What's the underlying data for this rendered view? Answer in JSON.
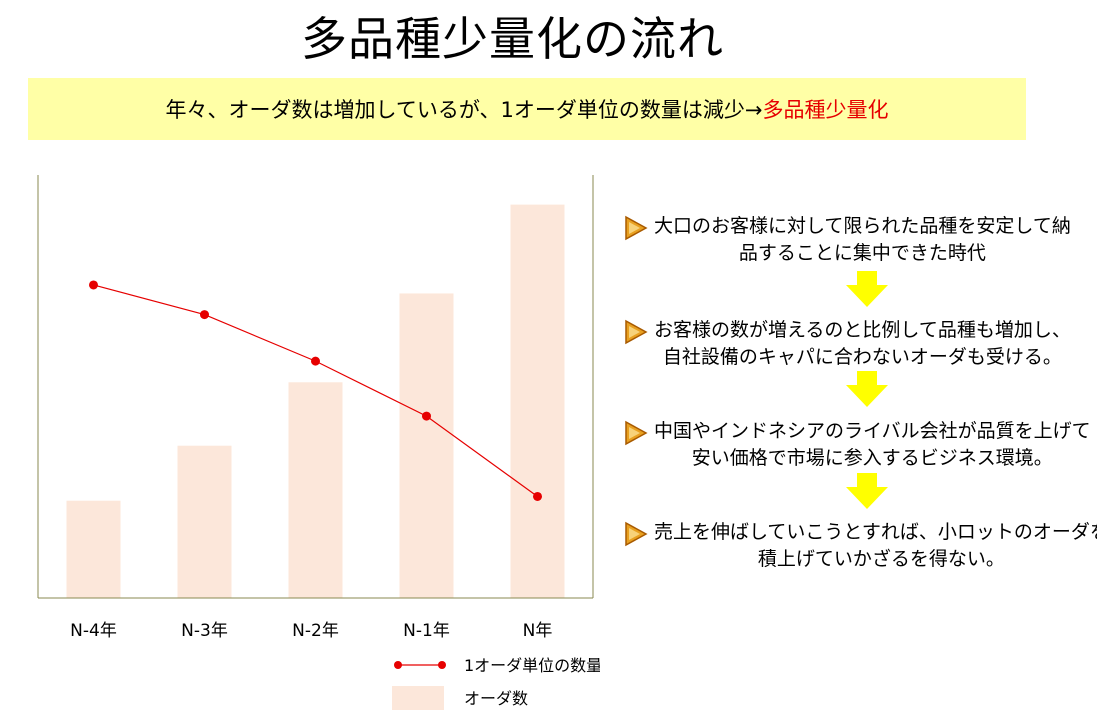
{
  "title": "多品種少量化の流れ",
  "banner": {
    "text": "年々、オーダ数は増加しているが、1オーダ単位の数量は減少→",
    "highlight": "多品種少量化"
  },
  "colors": {
    "banner_bg": "#ffffa6",
    "highlight": "#e60000",
    "bar": "#fce7da",
    "line": "#e60000",
    "axis": "#8a8a50",
    "step_arrow": "#e8a020",
    "down_arrow": "#ffff00"
  },
  "chart_data": {
    "type": "bar+line",
    "categories": [
      "N-4年",
      "N-3年",
      "N-2年",
      "N-1年",
      "N年"
    ],
    "series": [
      {
        "name": "オーダ数",
        "type": "bar",
        "values": [
          23,
          36,
          51,
          72,
          93
        ]
      },
      {
        "name": "1オーダ単位の数量",
        "type": "line",
        "values": [
          74,
          67,
          56,
          43,
          24
        ]
      }
    ],
    "ylim": [
      0,
      100
    ],
    "legend": "bottom",
    "grid": false
  },
  "steps": [
    {
      "icon": "play-arrow-icon",
      "text": "大口のお客様に対して限られた品種を安定して納\n品することに集中できた時代"
    },
    {
      "icon": "play-arrow-icon",
      "text": "お客様の数が増えるのと比例して品種も増加し、\n自社設備のキャパに合わないオーダも受ける。"
    },
    {
      "icon": "play-arrow-icon",
      "text": "中国やインドネシアのライバル会社が品質を上げて\n安い価格で市場に参入するビジネス環境。"
    },
    {
      "icon": "play-arrow-icon",
      "text": "売上を伸ばしていこうとすれば、小ロットのオーダを\n積上げていかざるを得ない。"
    }
  ],
  "down_arrows": [
    "down-arrow-icon",
    "down-arrow-icon",
    "down-arrow-icon"
  ]
}
